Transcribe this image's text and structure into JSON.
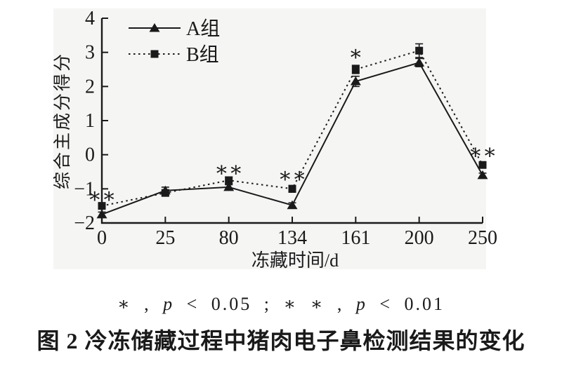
{
  "colors": {
    "ink": "#1a1a1a",
    "scan_bg": "#f5f5f4",
    "page_bg": "#ffffff"
  },
  "figure": {
    "title": "图 2  冷冻储藏过程中猪肉电子鼻检测结果的变化",
    "significance_note_segments": [
      {
        "text": "* , ",
        "italic": false
      },
      {
        "text": "p",
        "italic": true
      },
      {
        "text": " < 0.05 ;  ",
        "italic": false
      },
      {
        "text": "* * , ",
        "italic": false
      },
      {
        "text": "p",
        "italic": true
      },
      {
        "text": " < 0.01",
        "italic": false
      }
    ]
  },
  "chart_data": {
    "type": "line",
    "title": "",
    "xlabel": "冻藏时间/d",
    "ylabel": "综合主成分得分",
    "categories": [
      "0",
      "25",
      "80",
      "134",
      "161",
      "200",
      "250"
    ],
    "ylim": [
      -2,
      4
    ],
    "yticks": [
      -2,
      -1,
      0,
      1,
      2,
      3,
      4
    ],
    "grid": false,
    "legend_position": "top-left",
    "series": [
      {
        "name": "A组",
        "marker": "triangle",
        "line": "solid",
        "values": [
          -1.75,
          -1.05,
          -0.95,
          -1.48,
          2.15,
          2.7,
          -0.6
        ],
        "errors": [
          0.07,
          0.1,
          0.07,
          0.07,
          0.15,
          0.12,
          0.06
        ]
      },
      {
        "name": "B组",
        "marker": "square",
        "line": "dotted",
        "values": [
          -1.5,
          -1.12,
          -0.75,
          -1.0,
          2.5,
          3.05,
          -0.3
        ],
        "errors": [
          0.07,
          0.08,
          0.1,
          0.1,
          0.12,
          0.2,
          0.08
        ]
      }
    ],
    "annotations": [
      {
        "category_index": 0,
        "text": "**",
        "y": -1.22
      },
      {
        "category_index": 2,
        "text": "**",
        "y": -0.45
      },
      {
        "category_index": 3,
        "text": "**",
        "y": -0.62
      },
      {
        "category_index": 4,
        "text": "*",
        "y": 2.95
      },
      {
        "category_index": 6,
        "text": "**",
        "y": 0.07
      }
    ]
  }
}
